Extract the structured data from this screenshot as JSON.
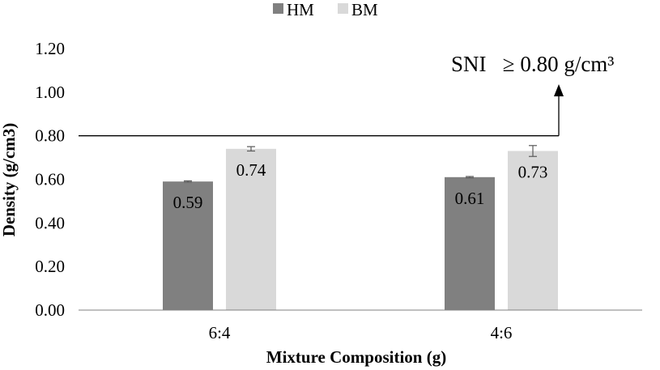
{
  "chart_data": {
    "type": "bar",
    "categories": [
      "6:4",
      "4:6"
    ],
    "series": [
      {
        "name": "HM",
        "values": [
          0.59,
          0.61
        ],
        "error": [
          0.003,
          0.003
        ],
        "labels": [
          "0.59",
          "0.61"
        ]
      },
      {
        "name": "BM",
        "values": [
          0.74,
          0.73
        ],
        "error": [
          0.01,
          0.025
        ],
        "labels": [
          "0.74",
          "0.73"
        ]
      }
    ],
    "colors": {
      "HM": "#808080",
      "BM": "#d9d9d9"
    },
    "title": "",
    "xlabel": "Mixture Composition (g)",
    "ylabel": "Density (g/cm3)",
    "ylim": [
      0,
      1.2
    ],
    "yticks": [
      "0.00",
      "0.20",
      "0.40",
      "0.60",
      "0.80",
      "1.00",
      "1.20"
    ],
    "reference_line": {
      "value": 0.8,
      "label": "SNI   ≥ 0.80 g/cm³"
    },
    "legend_position": "top-center",
    "grid": false
  }
}
